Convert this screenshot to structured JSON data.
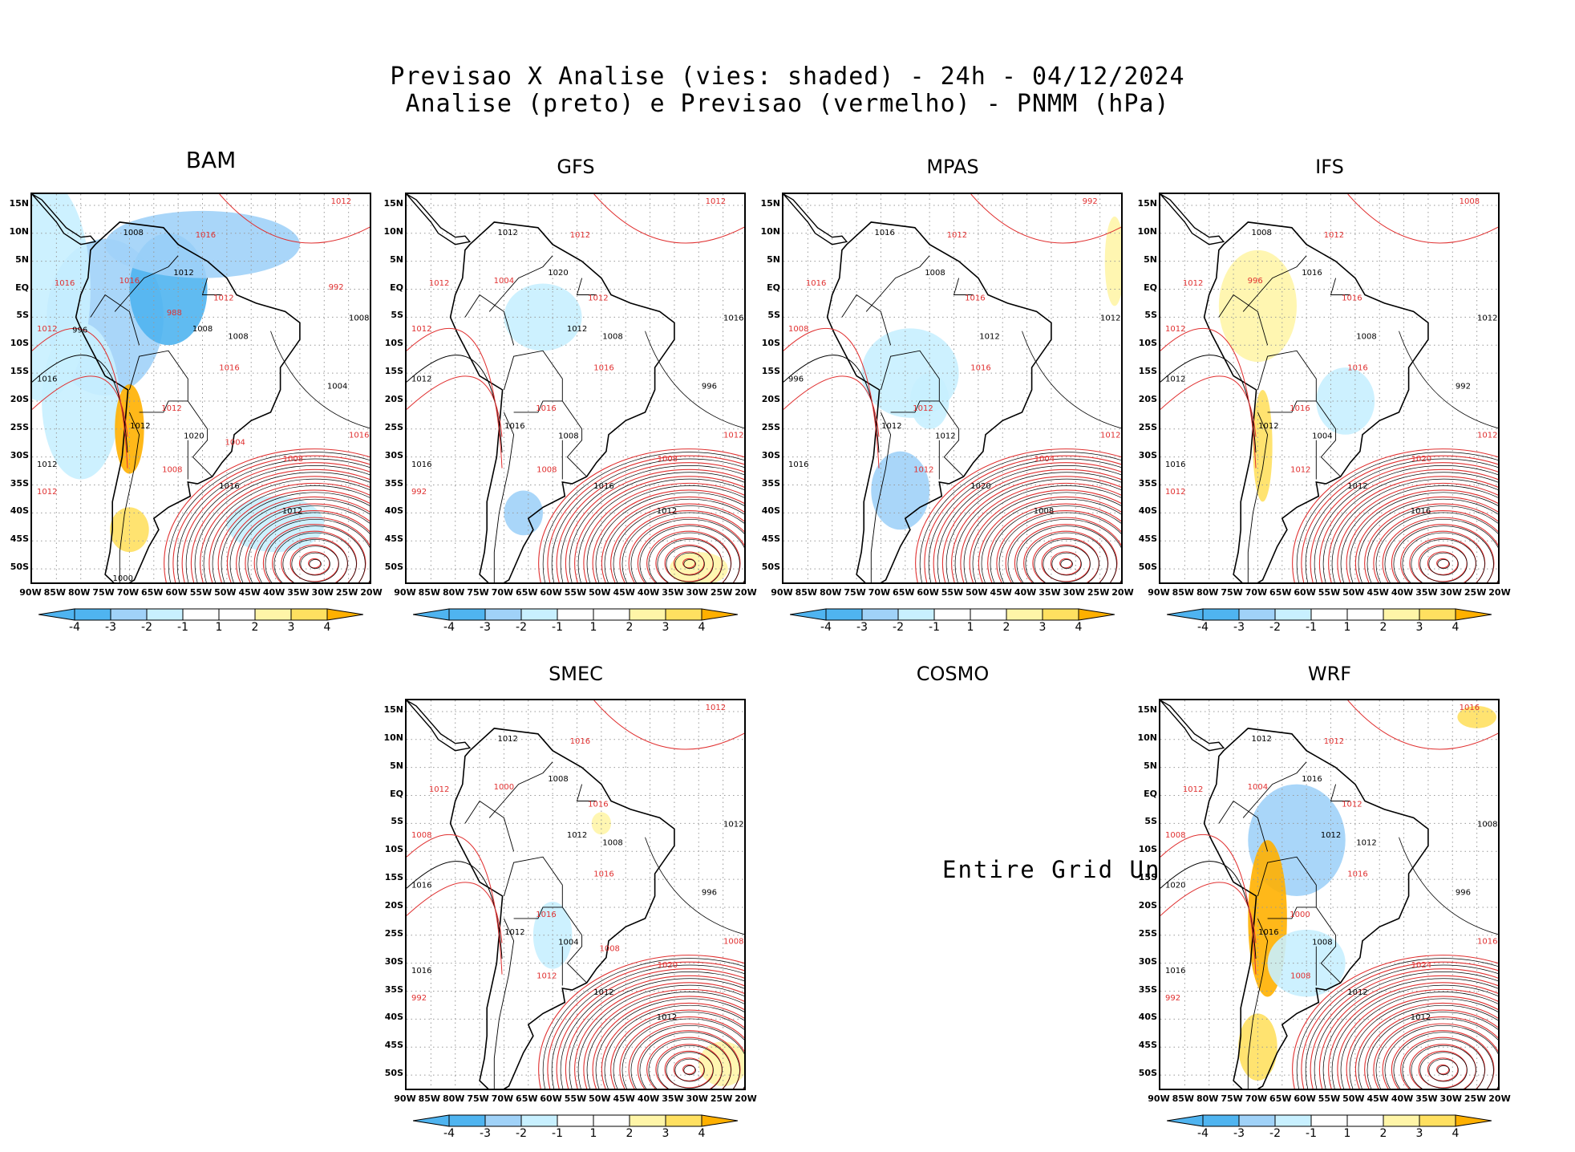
{
  "header": {
    "line1": "Previsao X Analise (vies: shaded) - 24h - 04/12/2024",
    "line2": "Analise (preto) e Previsao (vermelho) - PNMM (hPa)"
  },
  "colors": {
    "analysis_contour": "#000000",
    "forecast_contour": "#e03030",
    "bias_neg4": "#4fb4f0",
    "bias_neg3": "#a0d2f8",
    "bias_neg2": "#c8f0ff",
    "bias_neg1": "#ffffff",
    "bias_pos1": "#ffffff",
    "bias_pos2": "#fff5a8",
    "bias_pos3": "#ffe060",
    "bias_pos4": "#ffb000"
  },
  "panels": [
    {
      "name": "BAM",
      "has_data": true
    },
    {
      "name": "GFS",
      "has_data": true
    },
    {
      "name": "MPAS",
      "has_data": true
    },
    {
      "name": "IFS",
      "has_data": true
    },
    {
      "name": "SMEC",
      "has_data": true
    },
    {
      "name": "COSMO",
      "has_data": false,
      "message": "Entire Grid Undef"
    },
    {
      "name": "WRF",
      "has_data": true
    }
  ],
  "chart_data": {
    "type": "heatmap",
    "title": "Previsao X Analise (vies: shaded) - 24h - 04/12/2024",
    "subtitle": "Analise (preto) e Previsao (vermelho) - PNMM (hPa)",
    "variable": "PNMM (hPa)",
    "lat_ticks": [
      "15N",
      "10N",
      "5N",
      "EQ",
      "5S",
      "10S",
      "15S",
      "20S",
      "25S",
      "30S",
      "35S",
      "40S",
      "45S",
      "50S"
    ],
    "lon_ticks": [
      "90W",
      "85W",
      "80W",
      "75W",
      "70W",
      "65W",
      "60W",
      "55W",
      "50W",
      "45W",
      "40W",
      "35W",
      "30W",
      "25W",
      "20W"
    ],
    "lat_range": [
      -53,
      17
    ],
    "lon_range": [
      -90,
      -20
    ],
    "colorbar": {
      "labels": [
        "-4",
        "-3",
        "-2",
        "-1",
        "1",
        "2",
        "3",
        "4"
      ],
      "bounds": [
        -4,
        -3,
        -2,
        -1,
        1,
        2,
        3,
        4
      ],
      "colors": [
        "#4fb4f0",
        "#a0d2f8",
        "#c8f0ff",
        "#ffffff",
        "#ffffff",
        "#fff5a8",
        "#ffe060",
        "#ffb000"
      ]
    },
    "low_center": {
      "lat": -49,
      "lon": -32,
      "min_analysis_hPa": 992
    },
    "contour_labels": {
      "BAM": [
        "1016",
        "1012",
        "1016",
        "1012",
        "1012",
        "1008",
        "1008",
        "1008",
        "1016",
        "1012",
        "1012",
        "1016",
        "1016",
        "1008",
        "1012",
        "1012",
        "1008",
        "1016",
        "1012",
        "1020",
        "1016",
        "1004",
        "1012",
        "1008",
        "1004",
        "996",
        "992",
        "1000",
        "988"
      ],
      "GFS": [
        "1016",
        "1016",
        "1012",
        "1012",
        "1012",
        "1008",
        "1008",
        "1012",
        "1012",
        "1016",
        "1012",
        "1016",
        "1012",
        "1016",
        "1016",
        "1020",
        "1008",
        "1012",
        "1012",
        "1008",
        "1004",
        "996",
        "992",
        "1012"
      ],
      "MPAS": [
        "1016",
        "1012",
        "1012",
        "1008",
        "1008",
        "1012",
        "1012",
        "1016",
        "1012",
        "1016",
        "1016",
        "1020",
        "1016",
        "1012",
        "1012",
        "1008",
        "1004",
        "996",
        "992",
        "1012"
      ],
      "IFS": [
        "1016",
        "1012",
        "1012",
        "1016",
        "1012",
        "1008",
        "1012",
        "1008",
        "1012",
        "1016",
        "1016",
        "1012",
        "1012",
        "1012",
        "1016",
        "1016",
        "1020",
        "1012",
        "1008",
        "1004",
        "996",
        "992",
        "1012"
      ],
      "SMEC": [
        "1016",
        "1012",
        "1016",
        "1012",
        "1008",
        "1008",
        "1012",
        "1012",
        "1008",
        "1016",
        "1016",
        "1012",
        "1012",
        "1012",
        "1016",
        "1008",
        "1020",
        "1016",
        "1012",
        "1004",
        "1000",
        "996",
        "992",
        "1012",
        "1008"
      ],
      "WRF": [
        "1016",
        "1016",
        "1012",
        "1012",
        "1008",
        "1012",
        "1008",
        "1012",
        "1016",
        "1016",
        "1012",
        "1012",
        "1012",
        "1008",
        "1000",
        "1016",
        "1024",
        "1020",
        "1016",
        "1008",
        "1004",
        "996",
        "992",
        "1012"
      ]
    }
  }
}
